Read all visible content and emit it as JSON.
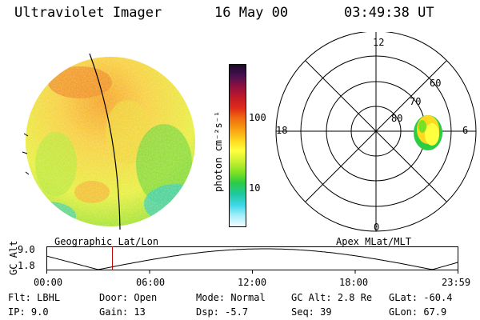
{
  "header": {
    "instrument": "Ultraviolet Imager",
    "date": "16 May 00",
    "time": "03:49:38 UT"
  },
  "colorbar": {
    "unit_label": "photon cm⁻²s⁻¹",
    "ticks": [
      "100",
      "10"
    ],
    "colors": [
      "#1a0a2a",
      "#4a1050",
      "#8a1040",
      "#c01828",
      "#e02c18",
      "#f06a10",
      "#f8a010",
      "#ffd820",
      "#ffff40",
      "#c8f030",
      "#7ae024",
      "#2ccc44",
      "#20c8a0",
      "#40d8e8",
      "#a0eef8",
      "#f4fbff"
    ]
  },
  "polar_plot": {
    "mlt_labels": {
      "top": "12",
      "left": "18",
      "right": "6",
      "bottom": "0"
    },
    "lat_labels": [
      "60",
      "70",
      "80"
    ]
  },
  "timeline": {
    "left_caption": "Geographic Lat/Lon",
    "right_caption": "Apex MLat/MLT",
    "y_axis_label": "GC Alt",
    "y_ticks": [
      "9.0",
      "1.8"
    ],
    "x_ticks": [
      "00:00",
      "06:00",
      "12:00",
      "18:00",
      "23:59"
    ],
    "current_time_hours": 3.83
  },
  "info": {
    "row1": [
      {
        "label": "Flt:",
        "value": "LBHL"
      },
      {
        "label": "Door:",
        "value": "Open"
      },
      {
        "label": "Mode:",
        "value": "Normal"
      },
      {
        "label": "GC Alt:",
        "value": "2.8 Re"
      },
      {
        "label": "GLat:",
        "value": "-60.4"
      }
    ],
    "row2": [
      {
        "label": "IP:",
        "value": "9.0"
      },
      {
        "label": "Gain:",
        "value": "13"
      },
      {
        "label": "Dsp:",
        "value": "-5.7"
      },
      {
        "label": "Seq:",
        "value": "39"
      },
      {
        "label": "GLon:",
        "value": "67.9"
      }
    ]
  }
}
